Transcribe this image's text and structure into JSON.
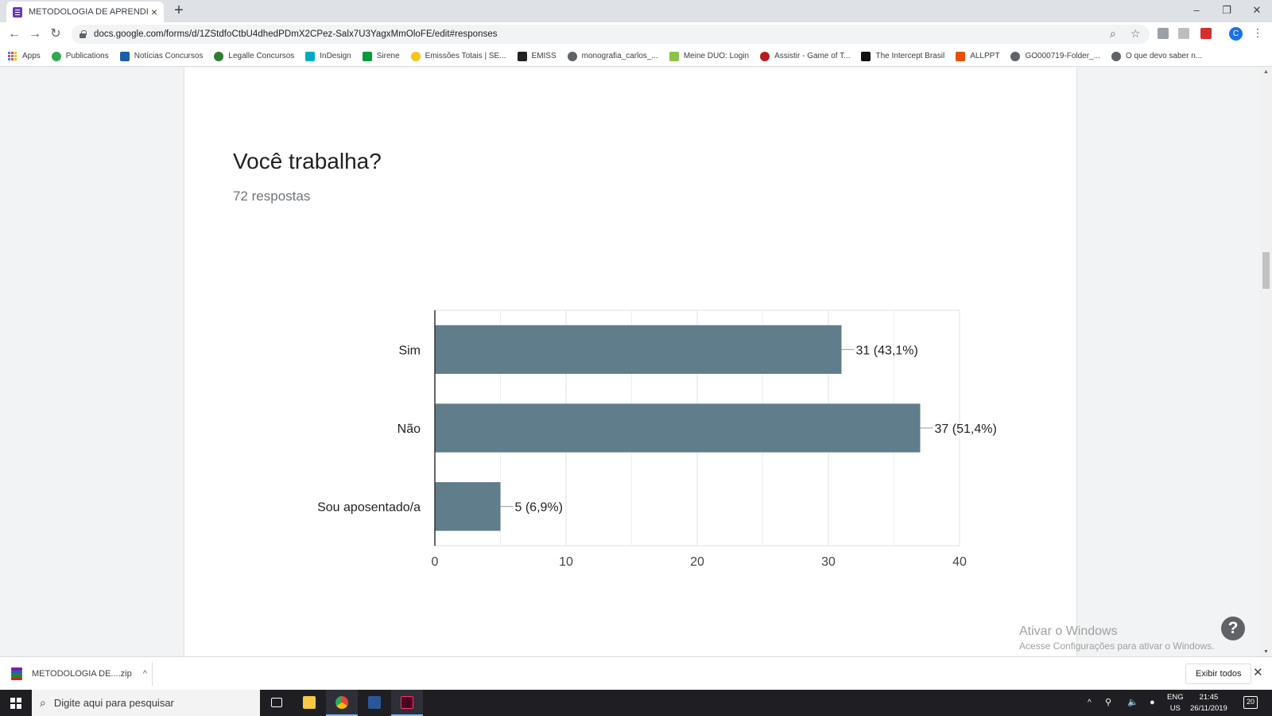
{
  "browser": {
    "tab_title": "METODOLOGIA DE APRENDIZAGEM",
    "tab_close": "×",
    "new_tab": "+",
    "window_controls": [
      "–",
      "❐",
      "✕"
    ],
    "url": "docs.google.com/forms/d/1ZStdfoCtbU4dhedPDmX2CPez-Salx7U3YagxMmOloFE/edit#responses",
    "profile_initial": "C"
  },
  "bookmarks": [
    {
      "label": "Apps",
      "icon": "apps-grid-icon",
      "color": "#4285f4"
    },
    {
      "label": "Publications",
      "icon": "publications-icon",
      "color": "#34a853"
    },
    {
      "label": "Notícias Concursos",
      "icon": "noticias-icon",
      "color": "#1a5fa8"
    },
    {
      "label": "Legalle Concursos",
      "icon": "legalle-icon",
      "color": "#2e7d32"
    },
    {
      "label": "InDesign",
      "icon": "indesign-icon",
      "color": "#00acc1"
    },
    {
      "label": "Sirene",
      "icon": "sirene-icon",
      "color": "#009c3b"
    },
    {
      "label": "Emissões Totais | SE...",
      "icon": "emissoes-icon",
      "color": "#f5c518"
    },
    {
      "label": "EMISS",
      "icon": "utf-icon",
      "color": "#222222"
    },
    {
      "label": "monografia_carlos_...",
      "icon": "globe-icon",
      "color": "#5f6368"
    },
    {
      "label": "Meine DUO: Login",
      "icon": "duo-icon",
      "color": "#8bc34a"
    },
    {
      "label": "Assistir - Game of T...",
      "icon": "got-icon",
      "color": "#b71c1c"
    },
    {
      "label": "The Intercept Brasil",
      "icon": "intercept-icon",
      "color": "#111111"
    },
    {
      "label": "ALLPPT",
      "icon": "allppt-icon",
      "color": "#e65100"
    },
    {
      "label": "GO000719-Folder_...",
      "icon": "globe-icon",
      "color": "#5f6368"
    },
    {
      "label": "O que devo saber n...",
      "icon": "globe-icon",
      "color": "#5f6368"
    }
  ],
  "form": {
    "question": "Você trabalha?",
    "response_count": "72 respostas"
  },
  "chart_data": {
    "type": "bar",
    "orientation": "horizontal",
    "categories": [
      "Sim",
      "Não",
      "Sou aposentado/a"
    ],
    "values": [
      31,
      37,
      5
    ],
    "data_labels": [
      "31 (43,1%)",
      "37 (51,4%)",
      "5 (6,9%)"
    ],
    "xlim": [
      0,
      40
    ],
    "x_ticks": [
      "0",
      "10",
      "20",
      "30",
      "40"
    ],
    "bar_color": "#607d8b",
    "grid": true
  },
  "watermark": {
    "title": "Ativar o Windows",
    "subtitle": "Acesse Configurações para ativar o Windows."
  },
  "help_label": "?",
  "downloads": {
    "file_name": "METODOLOGIA DE....zip",
    "show_all": "Exibir todos",
    "close": "✕"
  },
  "taskbar": {
    "search_placeholder": "Digite aqui para pesquisar",
    "lang_line1": "ENG",
    "lang_line2": "US",
    "time": "21:45",
    "date": "26/11/2019",
    "notification_count": "20"
  }
}
